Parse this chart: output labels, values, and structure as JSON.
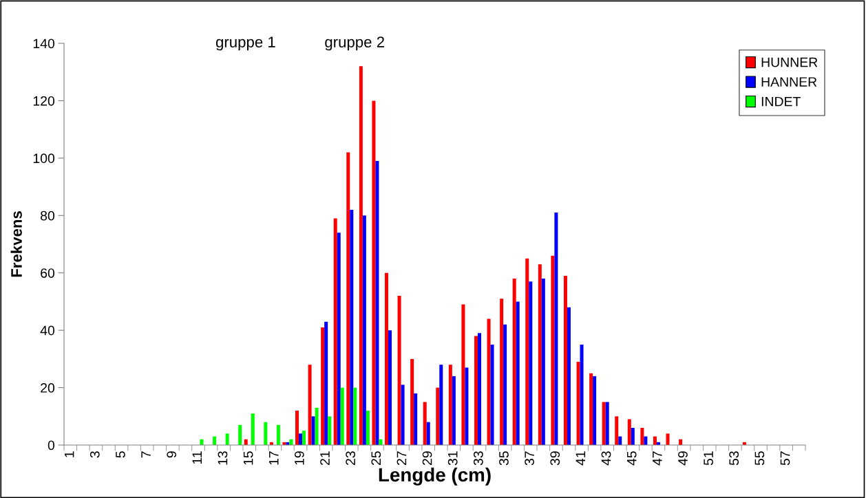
{
  "chart_data": {
    "type": "bar",
    "xlabel": "Lengde (cm)",
    "ylabel": "Frekvens",
    "categories": [
      "1",
      null,
      "3",
      null,
      "5",
      null,
      "7",
      null,
      "9",
      null,
      "11",
      null,
      "13",
      null,
      "15",
      null,
      "17",
      null,
      "19",
      null,
      "21",
      null,
      "23",
      null,
      "25",
      null,
      "27",
      null,
      "29",
      null,
      "31",
      null,
      "33",
      null,
      "35",
      null,
      "37",
      null,
      "39",
      null,
      "41",
      null,
      "43",
      null,
      "45",
      null,
      "47",
      null,
      "49",
      null,
      "51",
      null,
      "53",
      null,
      "55",
      null,
      "57",
      null
    ],
    "series": [
      {
        "name": "HUNNER",
        "color": "#ff0000",
        "values": [
          0,
          0,
          0,
          0,
          0,
          0,
          0,
          0,
          0,
          0,
          0,
          0,
          0,
          0,
          2,
          0,
          1,
          1,
          12,
          28,
          41,
          79,
          102,
          132,
          120,
          60,
          52,
          30,
          15,
          20,
          28,
          49,
          38,
          44,
          51,
          58,
          65,
          63,
          66,
          59,
          29,
          25,
          15,
          10,
          9,
          6,
          3,
          4,
          2,
          0,
          0,
          0,
          0,
          1,
          0,
          0,
          0,
          0
        ]
      },
      {
        "name": "HANNER",
        "color": "#0000ff",
        "values": [
          0,
          0,
          0,
          0,
          0,
          0,
          0,
          0,
          0,
          0,
          0,
          0,
          0,
          0,
          0,
          0,
          0,
          1,
          4,
          10,
          43,
          74,
          82,
          80,
          99,
          40,
          21,
          18,
          8,
          28,
          24,
          27,
          39,
          35,
          42,
          50,
          57,
          58,
          81,
          48,
          35,
          24,
          15,
          3,
          6,
          3,
          1,
          0,
          0,
          0,
          0,
          0,
          0,
          0,
          0,
          0,
          0,
          0
        ]
      },
      {
        "name": "INDET",
        "color": "#00ff00",
        "values": [
          0,
          0,
          0,
          0,
          0,
          0,
          0,
          0,
          0,
          0,
          2,
          3,
          4,
          7,
          11,
          8,
          7,
          2,
          5,
          13,
          10,
          20,
          20,
          12,
          2,
          0,
          0,
          0,
          0,
          0,
          0,
          0,
          0,
          0,
          0,
          0,
          0,
          0,
          0,
          0,
          0,
          0,
          0,
          0,
          0,
          0,
          0,
          0,
          0,
          0,
          0,
          0,
          0,
          0,
          0,
          0,
          0,
          0
        ]
      }
    ],
    "ylim": [
      0,
      140
    ],
    "yticks": [
      0,
      20,
      40,
      60,
      80,
      100,
      120,
      140
    ],
    "annotations": [
      "gruppe 1",
      "gruppe 2"
    ],
    "legend": "top right",
    "grid": false
  }
}
